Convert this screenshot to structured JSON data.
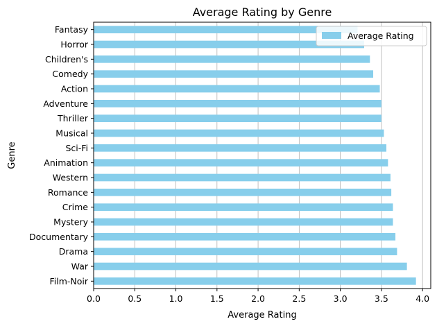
{
  "chart_data": {
    "type": "bar",
    "orientation": "horizontal",
    "title": "Average Rating by Genre",
    "xlabel": "Average Rating",
    "ylabel": "Genre",
    "categories": [
      "Film-Noir",
      "War",
      "Drama",
      "Documentary",
      "Mystery",
      "Crime",
      "Romance",
      "Western",
      "Animation",
      "Sci-Fi",
      "Musical",
      "Thriller",
      "Adventure",
      "Action",
      "Comedy",
      "Children's",
      "Horror",
      "Fantasy"
    ],
    "series": [
      {
        "name": "Average Rating",
        "color": "#87ceeb",
        "values": [
          3.92,
          3.81,
          3.69,
          3.67,
          3.64,
          3.64,
          3.62,
          3.61,
          3.58,
          3.56,
          3.53,
          3.5,
          3.5,
          3.48,
          3.4,
          3.36,
          3.29,
          3.21
        ]
      }
    ],
    "xlim": [
      0,
      4.1
    ],
    "xticks": [
      "0.0",
      "0.5",
      "1.0",
      "1.5",
      "2.0",
      "2.5",
      "3.0",
      "3.5",
      "4.0"
    ],
    "grid": "x",
    "legend": "top-right"
  }
}
